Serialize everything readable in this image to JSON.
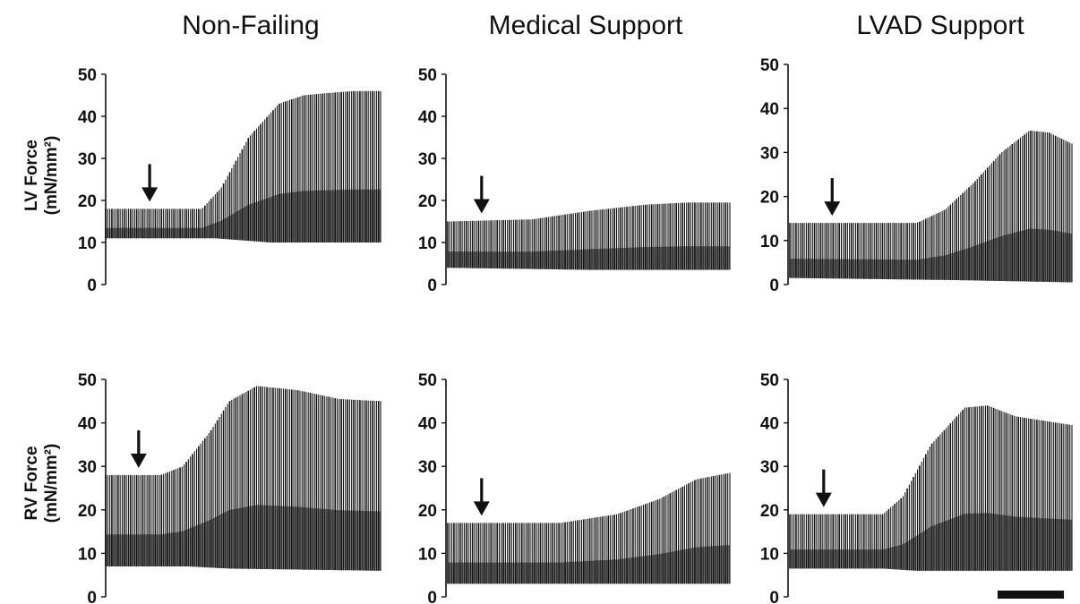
{
  "chart_data": {
    "type": "line",
    "columns": [
      "Non-Failing",
      "Medical Support",
      "LVAD Support"
    ],
    "rows": [
      "LV Force\n(mN/mm²)",
      "RV Force\n(mN/mm²)"
    ],
    "ylim": [
      0,
      50
    ],
    "yticks": [
      "0",
      "10",
      "20",
      "30",
      "40",
      "50"
    ],
    "scale_bar": true,
    "panels": [
      {
        "row": "LV Force",
        "column": "Non-Failing",
        "arrow_at": 0.16,
        "envelope_top": [
          [
            0,
            18
          ],
          [
            0.35,
            18
          ],
          [
            0.42,
            23
          ],
          [
            0.52,
            35
          ],
          [
            0.63,
            43
          ],
          [
            0.72,
            45
          ],
          [
            0.8,
            45.5
          ],
          [
            0.9,
            46
          ],
          [
            1.0,
            46
          ]
        ],
        "envelope_bottom": [
          [
            0,
            11
          ],
          [
            0.4,
            11
          ],
          [
            0.6,
            10
          ],
          [
            1.0,
            10
          ]
        ]
      },
      {
        "row": "LV Force",
        "column": "Medical Support",
        "arrow_at": 0.12,
        "envelope_top": [
          [
            0,
            15
          ],
          [
            0.3,
            15.5
          ],
          [
            0.5,
            17.5
          ],
          [
            0.7,
            19
          ],
          [
            0.85,
            19.5
          ],
          [
            1.0,
            19.5
          ]
        ],
        "envelope_bottom": [
          [
            0,
            4
          ],
          [
            0.5,
            3.5
          ],
          [
            1.0,
            3.5
          ]
        ]
      },
      {
        "row": "LV Force",
        "column": "LVAD Support",
        "arrow_at": 0.15,
        "envelope_top": [
          [
            0,
            14
          ],
          [
            0.45,
            14
          ],
          [
            0.55,
            17
          ],
          [
            0.65,
            23
          ],
          [
            0.75,
            30
          ],
          [
            0.85,
            35
          ],
          [
            0.92,
            34.5
          ],
          [
            1.0,
            32
          ]
        ],
        "envelope_bottom": [
          [
            0,
            1.5
          ],
          [
            0.6,
            1
          ],
          [
            1.0,
            0.5
          ]
        ]
      },
      {
        "row": "RV Force",
        "column": "Non-Failing",
        "arrow_at": 0.12,
        "envelope_top": [
          [
            0,
            28
          ],
          [
            0.2,
            28
          ],
          [
            0.28,
            30
          ],
          [
            0.38,
            38
          ],
          [
            0.45,
            45
          ],
          [
            0.55,
            48.5
          ],
          [
            0.7,
            47.5
          ],
          [
            0.85,
            45.5
          ],
          [
            1.0,
            45
          ]
        ],
        "envelope_bottom": [
          [
            0,
            7
          ],
          [
            0.3,
            7
          ],
          [
            0.45,
            6.5
          ],
          [
            1.0,
            6
          ]
        ]
      },
      {
        "row": "RV Force",
        "column": "Medical Support",
        "arrow_at": 0.12,
        "envelope_top": [
          [
            0,
            17
          ],
          [
            0.4,
            17
          ],
          [
            0.6,
            19
          ],
          [
            0.75,
            22.5
          ],
          [
            0.88,
            27
          ],
          [
            1.0,
            28.5
          ]
        ],
        "envelope_bottom": [
          [
            0,
            3
          ],
          [
            1.0,
            3
          ]
        ]
      },
      {
        "row": "RV Force",
        "column": "LVAD Support",
        "arrow_at": 0.12,
        "envelope_top": [
          [
            0,
            19
          ],
          [
            0.33,
            19
          ],
          [
            0.4,
            23
          ],
          [
            0.5,
            35
          ],
          [
            0.62,
            43.5
          ],
          [
            0.7,
            44
          ],
          [
            0.8,
            41.5
          ],
          [
            0.9,
            40.5
          ],
          [
            1.0,
            39.5
          ]
        ],
        "envelope_bottom": [
          [
            0,
            6.5
          ],
          [
            0.33,
            6.5
          ],
          [
            0.45,
            6
          ],
          [
            1.0,
            6
          ]
        ]
      }
    ]
  }
}
